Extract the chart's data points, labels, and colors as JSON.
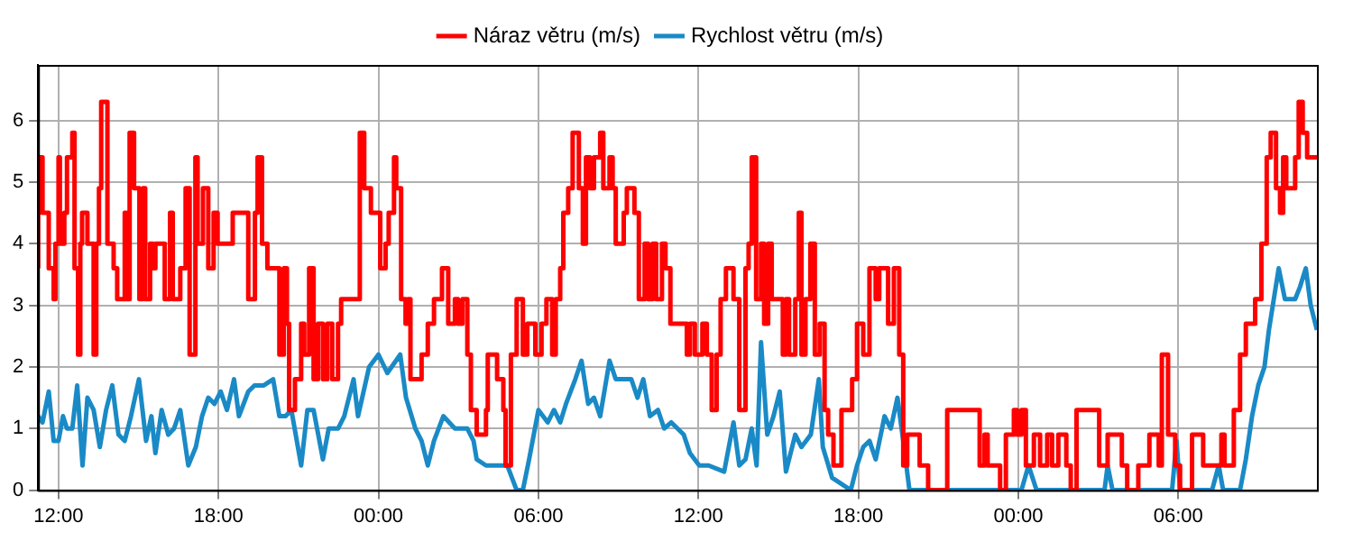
{
  "chart_data": {
    "type": "line",
    "xlim": [
      "--01-01T11:14",
      "--01-03T11:12"
    ],
    "ylim": [
      0,
      6.9
    ],
    "xticks": [
      {
        "value": "--01-01T12:00",
        "label": "12:00"
      },
      {
        "value": "--01-01T18:00",
        "label": "18:00"
      },
      {
        "value": "--01-02T00:00",
        "label": "00:00"
      },
      {
        "value": "--01-02T06:00",
        "label": "06:00"
      },
      {
        "value": "--01-02T12:00",
        "label": "12:00"
      },
      {
        "value": "--01-02T18:00",
        "label": "18:00"
      },
      {
        "value": "--01-03T00:00",
        "label": "00:00"
      },
      {
        "value": "--01-03T06:00",
        "label": "06:00"
      }
    ],
    "yticks": [
      0,
      1,
      2,
      3,
      4,
      5,
      6
    ],
    "grid": true,
    "legend": "top",
    "marker": "none",
    "line_style": "solid",
    "series": [
      {
        "name": "Náraz větru (m/s)",
        "type": "step",
        "color": "#ff0000",
        "x": [
          "--01-01T11:14",
          "--01-01T11:18",
          "--01-01T11:24",
          "--01-01T11:38",
          "--01-01T11:49",
          "--01-01T11:53",
          "--01-01T12:00",
          "--01-01T12:03",
          "--01-01T12:13",
          "--01-01T12:19",
          "--01-01T12:31",
          "--01-01T12:36",
          "--01-01T12:44",
          "--01-01T12:49",
          "--01-01T12:53",
          "--01-01T13:05",
          "--01-01T13:19",
          "--01-01T13:25",
          "--01-01T13:31",
          "--01-01T13:36",
          "--01-01T13:50",
          "--01-01T14:04",
          "--01-01T14:12",
          "--01-01T14:29",
          "--01-01T14:33",
          "--01-01T14:40",
          "--01-01T14:50",
          "--01-01T15:02",
          "--01-01T15:10",
          "--01-01T15:15",
          "--01-01T15:26",
          "--01-01T15:32",
          "--01-01T15:38",
          "--01-01T15:59",
          "--01-01T16:11",
          "--01-01T16:17",
          "--01-01T16:34",
          "--01-01T16:46",
          "--01-01T16:55",
          "--01-01T17:08",
          "--01-01T17:13",
          "--01-01T17:25",
          "--01-01T17:37",
          "--01-01T17:49",
          "--01-01T17:58",
          "--01-01T18:32",
          "--01-01T19:07",
          "--01-01T19:22",
          "--01-01T19:28",
          "--01-01T19:38",
          "--01-01T19:50",
          "--01-01T20:17",
          "--01-01T20:27",
          "--01-01T20:34",
          "--01-01T20:39",
          "--01-01T20:52",
          "--01-01T21:06",
          "--01-01T21:13",
          "--01-01T21:24",
          "--01-01T21:34",
          "--01-01T21:44",
          "--01-01T21:55",
          "--01-01T22:05",
          "--01-01T22:16",
          "--01-01T22:29",
          "--01-01T22:36",
          "--01-01T23:18",
          "--01-01T23:28",
          "--01-01T23:43",
          "--01-02T00:04",
          "--01-02T00:16",
          "--01-02T00:23",
          "--01-02T00:35",
          "--01-02T00:40",
          "--01-02T00:51",
          "--01-02T01:01",
          "--01-02T01:07",
          "--01-02T01:12",
          "--01-02T01:37",
          "--01-02T01:51",
          "--01-02T02:05",
          "--01-02T02:23",
          "--01-02T02:37",
          "--01-02T02:52",
          "--01-02T02:59",
          "--01-02T03:09",
          "--01-02T03:20",
          "--01-02T03:28",
          "--01-02T03:41",
          "--01-02T04:02",
          "--01-02T04:06",
          "--01-02T04:27",
          "--01-02T04:41",
          "--01-02T04:46",
          "--01-02T04:58",
          "--01-02T05:11",
          "--01-02T05:25",
          "--01-02T05:35",
          "--01-02T05:53",
          "--01-02T06:07",
          "--01-02T06:18",
          "--01-02T06:31",
          "--01-02T06:39",
          "--01-02T06:49",
          "--01-02T06:56",
          "--01-02T07:07",
          "--01-02T07:17",
          "--01-02T07:31",
          "--01-02T07:40",
          "--01-02T07:47",
          "--01-02T07:56",
          "--01-02T08:05",
          "--01-02T08:19",
          "--01-02T08:26",
          "--01-02T08:40",
          "--01-02T08:47",
          "--01-02T08:54",
          "--01-02T09:12",
          "--01-02T09:19",
          "--01-02T09:36",
          "--01-02T09:46",
          "--01-02T09:59",
          "--01-02T10:07",
          "--01-02T10:17",
          "--01-02T10:25",
          "--01-02T10:38",
          "--01-02T10:46",
          "--01-02T10:57",
          "--01-02T11:34",
          "--01-02T11:41",
          "--01-02T11:52",
          "--01-02T12:09",
          "--01-02T12:19",
          "--01-02T12:30",
          "--01-02T12:41",
          "--01-02T12:50",
          "--01-02T13:02",
          "--01-02T13:19",
          "--01-02T13:32",
          "--01-02T13:46",
          "--01-02T13:53",
          "--01-02T14:00",
          "--01-02T14:10",
          "--01-02T14:21",
          "--01-02T14:28",
          "--01-02T14:37",
          "--01-02T14:45",
          "--01-02T15:10",
          "--01-02T15:17",
          "--01-02T15:24",
          "--01-02T15:38",
          "--01-02T15:46",
          "--01-02T15:52",
          "--01-02T16:01",
          "--01-02T16:12",
          "--01-02T16:22",
          "--01-02T16:33",
          "--01-02T16:44",
          "--01-02T16:52",
          "--01-02T17:04",
          "--01-02T17:22",
          "--01-02T17:46",
          "--01-02T17:57",
          "--01-02T18:11",
          "--01-02T18:25",
          "--01-02T18:39",
          "--01-02T18:47",
          "--01-02T19:07",
          "--01-02T19:20",
          "--01-02T19:32",
          "--01-02T19:41",
          "--01-02T19:50",
          "--01-02T20:18",
          "--01-02T20:37",
          "--01-02T21:20",
          "--01-02T22:33",
          "--01-02T22:44",
          "--01-02T22:51",
          "--01-02T23:19",
          "--01-02T23:32",
          "--01-02T23:50",
          "--01-02T23:57",
          "--01-03T00:07",
          "--01-03T00:17",
          "--01-03T00:35",
          "--01-03T00:49",
          "--01-03T01:05",
          "--01-03T01:16",
          "--01-03T01:30",
          "--01-03T01:48",
          "--01-03T01:58",
          "--01-03T02:11",
          "--01-03T03:02",
          "--01-03T03:21",
          "--01-03T03:53",
          "--01-03T04:05",
          "--01-03T04:30",
          "--01-03T04:55",
          "--01-03T05:16",
          "--01-03T05:23",
          "--01-03T05:37",
          "--01-03T05:53",
          "--01-03T06:04",
          "--01-03T06:31",
          "--01-03T06:56",
          "--01-03T07:37",
          "--01-03T07:44",
          "--01-03T08:05",
          "--01-03T08:19",
          "--01-03T08:32",
          "--01-03T08:53",
          "--01-03T09:07",
          "--01-03T09:19",
          "--01-03T09:28",
          "--01-03T09:40",
          "--01-03T09:49",
          "--01-03T09:56",
          "--01-03T10:03",
          "--01-03T10:23",
          "--01-03T10:31",
          "--01-03T10:40",
          "--01-03T10:50",
          "--01-03T11:08",
          "--01-03T11:12"
        ],
        "values": [
          3.6,
          4.5,
          5.4,
          4.5,
          3.6,
          3.1,
          4,
          5.4,
          4,
          4.5,
          5.4,
          5.8,
          3.6,
          2.2,
          4,
          4.5,
          4,
          2.2,
          4,
          4.9,
          6.3,
          4,
          3.6,
          3.1,
          4.5,
          3.1,
          5.8,
          4.9,
          3.1,
          4.9,
          3.1,
          4,
          3.6,
          4,
          3.1,
          4.5,
          3.1,
          3.6,
          4.9,
          2.2,
          5.4,
          4,
          4.9,
          3.6,
          4.5,
          4,
          4.5,
          3.1,
          4.5,
          5.4,
          4,
          3.6,
          2.2,
          3.6,
          2.7,
          1.3,
          1.8,
          2.7,
          2.2,
          3.6,
          1.8,
          2.7,
          1.8,
          2.7,
          1.8,
          2.7,
          3.1,
          5.8,
          4.9,
          4.5,
          3.6,
          4,
          4.5,
          5.4,
          4.9,
          3.1,
          2.7,
          3.1,
          1.8,
          2.2,
          2.7,
          3.1,
          3.6,
          2.7,
          3.1,
          2.7,
          3.1,
          2.2,
          1.3,
          0.9,
          1.3,
          2.2,
          1.8,
          1.3,
          0.4,
          2.2,
          3.1,
          2.2,
          2.7,
          2.2,
          2.7,
          3.1,
          2.2,
          3.1,
          3.6,
          4.5,
          4.9,
          5.8,
          4.9,
          4,
          5.4,
          4.9,
          5.4,
          5.8,
          4.9,
          5.4,
          4.9,
          4,
          4.5,
          4.9,
          4.5,
          3.1,
          4,
          3.1,
          4,
          3.1,
          4,
          3.6,
          2.7,
          2.2,
          2.7,
          2.2,
          2.7,
          2.2,
          1.3,
          2.2,
          3.1,
          3.6,
          3.1,
          1.3,
          3.6,
          4,
          5.4,
          3.1,
          4,
          2.7,
          4,
          3.1,
          2.2,
          3.1,
          2.2,
          3.1,
          4.5,
          2.2,
          3.1,
          4,
          2.2,
          2.7,
          1.3,
          0.9,
          0.4,
          1.3,
          1.8,
          2.7,
          2.2,
          3.6,
          3.1,
          3.6,
          2.7,
          3.6,
          2.2,
          0.4,
          0.9,
          0.4,
          0,
          1.3,
          0.4,
          0.9,
          0.4,
          0,
          0.9,
          1.3,
          0.9,
          1.3,
          0.4,
          0.9,
          0.4,
          0.9,
          0.4,
          0.9,
          0.4,
          0,
          1.3,
          0.4,
          0.9,
          0.4,
          0,
          0.4,
          0.9,
          0.4,
          2.2,
          0.9,
          0.4,
          0,
          0.9,
          0.4,
          0.9,
          0.4,
          1.3,
          2.2,
          2.7,
          3.1,
          4,
          5.4,
          5.8,
          4.9,
          4.5,
          5.4,
          4.9,
          5.4,
          6.3,
          5.8,
          5.4,
          5.4
        ]
      },
      {
        "name": "Rychlost větru (m/s)",
        "type": "line",
        "color": "#1a8ac6",
        "x": [
          "--01-01T11:14",
          "--01-01T11:24",
          "--01-01T11:38",
          "--01-01T11:49",
          "--01-01T12:00",
          "--01-01T12:10",
          "--01-01T12:19",
          "--01-01T12:31",
          "--01-01T12:42",
          "--01-01T12:54",
          "--01-01T13:05",
          "--01-01T13:19",
          "--01-01T13:33",
          "--01-01T13:47",
          "--01-01T14:01",
          "--01-01T14:15",
          "--01-01T14:29",
          "--01-01T14:43",
          "--01-01T15:01",
          "--01-01T15:17",
          "--01-01T15:29",
          "--01-01T15:38",
          "--01-01T15:52",
          "--01-01T16:07",
          "--01-01T16:20",
          "--01-01T16:34",
          "--01-01T16:52",
          "--01-01T17:09",
          "--01-01T17:23",
          "--01-01T17:37",
          "--01-01T17:51",
          "--01-01T18:05",
          "--01-01T18:19",
          "--01-01T18:35",
          "--01-01T18:46",
          "--01-01T19:07",
          "--01-01T19:21",
          "--01-01T19:42",
          "--01-01T20:03",
          "--01-01T20:17",
          "--01-01T20:31",
          "--01-01T20:44",
          "--01-01T21:06",
          "--01-01T21:20",
          "--01-01T21:34",
          "--01-01T21:55",
          "--01-01T22:08",
          "--01-01T22:29",
          "--01-01T22:43",
          "--01-01T23:04",
          "--01-01T23:14",
          "--01-01T23:39",
          "--01-02T00:00",
          "--01-02T00:20",
          "--01-02T00:49",
          "--01-02T01:02",
          "--01-02T01:23",
          "--01-02T01:37",
          "--01-02T01:51",
          "--01-02T02:05",
          "--01-02T02:26",
          "--01-02T02:52",
          "--01-02T03:20",
          "--01-02T03:34",
          "--01-02T03:41",
          "--01-02T04:02",
          "--01-02T04:50",
          "--01-02T05:11",
          "--01-02T05:25",
          "--01-02T05:39",
          "--01-02T06:00",
          "--01-02T06:21",
          "--01-02T06:35",
          "--01-02T06:49",
          "--01-02T07:02",
          "--01-02T07:23",
          "--01-02T07:37",
          "--01-02T07:52",
          "--01-02T08:05",
          "--01-02T08:19",
          "--01-02T08:40",
          "--01-02T08:54",
          "--01-02T09:15",
          "--01-02T09:29",
          "--01-02T09:43",
          "--01-02T09:56",
          "--01-02T10:11",
          "--01-02T10:29",
          "--01-02T10:43",
          "--01-02T10:59",
          "--01-02T11:13",
          "--01-02T11:27",
          "--01-02T11:41",
          "--01-02T12:02",
          "--01-02T12:23",
          "--01-02T12:58",
          "--01-02T13:19",
          "--01-02T13:32",
          "--01-02T13:46",
          "--01-02T14:00",
          "--01-02T14:11",
          "--01-02T14:21",
          "--01-02T14:35",
          "--01-02T14:49",
          "--01-02T15:03",
          "--01-02T15:17",
          "--01-02T15:38",
          "--01-02T15:52",
          "--01-02T16:13",
          "--01-02T16:31",
          "--01-02T16:40",
          "--01-02T17:01",
          "--01-02T17:43",
          "--01-02T17:57",
          "--01-02T18:11",
          "--01-02T18:25",
          "--01-02T18:39",
          "--01-02T18:59",
          "--01-02T19:13",
          "--01-02T19:28",
          "--01-02T19:41",
          "--01-02T19:55",
          "--01-03T00:07",
          "--01-03T00:23",
          "--01-03T00:41",
          "--01-03T03:14",
          "--01-03T03:21",
          "--01-03T03:32",
          "--01-03T05:46",
          "--01-03T05:56",
          "--01-03T06:04",
          "--01-03T07:16",
          "--01-03T07:31",
          "--01-03T07:41",
          "--01-03T08:19",
          "--01-03T08:32",
          "--01-03T08:46",
          "--01-03T09:00",
          "--01-03T09:14",
          "--01-03T09:24",
          "--01-03T09:35",
          "--01-03T09:46",
          "--01-03T10:00",
          "--01-03T10:23",
          "--01-03T10:34",
          "--01-03T10:47",
          "--01-03T10:58",
          "--01-03T11:12"
        ],
        "values": [
          1.2,
          1.1,
          1.6,
          0.8,
          0.8,
          1.2,
          1,
          1,
          1.7,
          0.4,
          1.5,
          1.3,
          0.7,
          1.3,
          1.7,
          0.9,
          0.8,
          1.2,
          1.8,
          0.8,
          1.2,
          0.6,
          1.3,
          0.9,
          1,
          1.3,
          0.4,
          0.7,
          1.2,
          1.5,
          1.4,
          1.6,
          1.3,
          1.8,
          1.2,
          1.6,
          1.7,
          1.7,
          1.8,
          1.2,
          1.2,
          1.3,
          0.4,
          1.3,
          1.3,
          0.5,
          1,
          1,
          1.2,
          1.8,
          1.2,
          2,
          2.2,
          1.9,
          2.2,
          1.5,
          1,
          0.8,
          0.4,
          0.8,
          1.2,
          1,
          1,
          0.8,
          0.5,
          0.4,
          0.4,
          0,
          0,
          0.5,
          1.3,
          1.1,
          1.3,
          1.1,
          1.4,
          1.8,
          2.1,
          1.4,
          1.5,
          1.2,
          2.1,
          1.8,
          1.8,
          1.8,
          1.5,
          1.8,
          1.2,
          1.3,
          1,
          1.1,
          1,
          0.9,
          0.6,
          0.4,
          0.4,
          0.3,
          1.1,
          0.4,
          0.5,
          1,
          0.4,
          2.4,
          0.9,
          1.2,
          1.6,
          0.3,
          0.9,
          0.7,
          0.9,
          1.8,
          0.7,
          0.2,
          0,
          0.4,
          0.7,
          0.8,
          0.5,
          1.2,
          1,
          1.5,
          0.8,
          0,
          0,
          0.4,
          0,
          0,
          0.4,
          0,
          0,
          0.8,
          0,
          0,
          0.4,
          0,
          0,
          0.5,
          1.2,
          1.7,
          2,
          2.6,
          3.1,
          3.6,
          3.1,
          3.1,
          3.3,
          3.6,
          3,
          2.6
        ]
      }
    ]
  }
}
